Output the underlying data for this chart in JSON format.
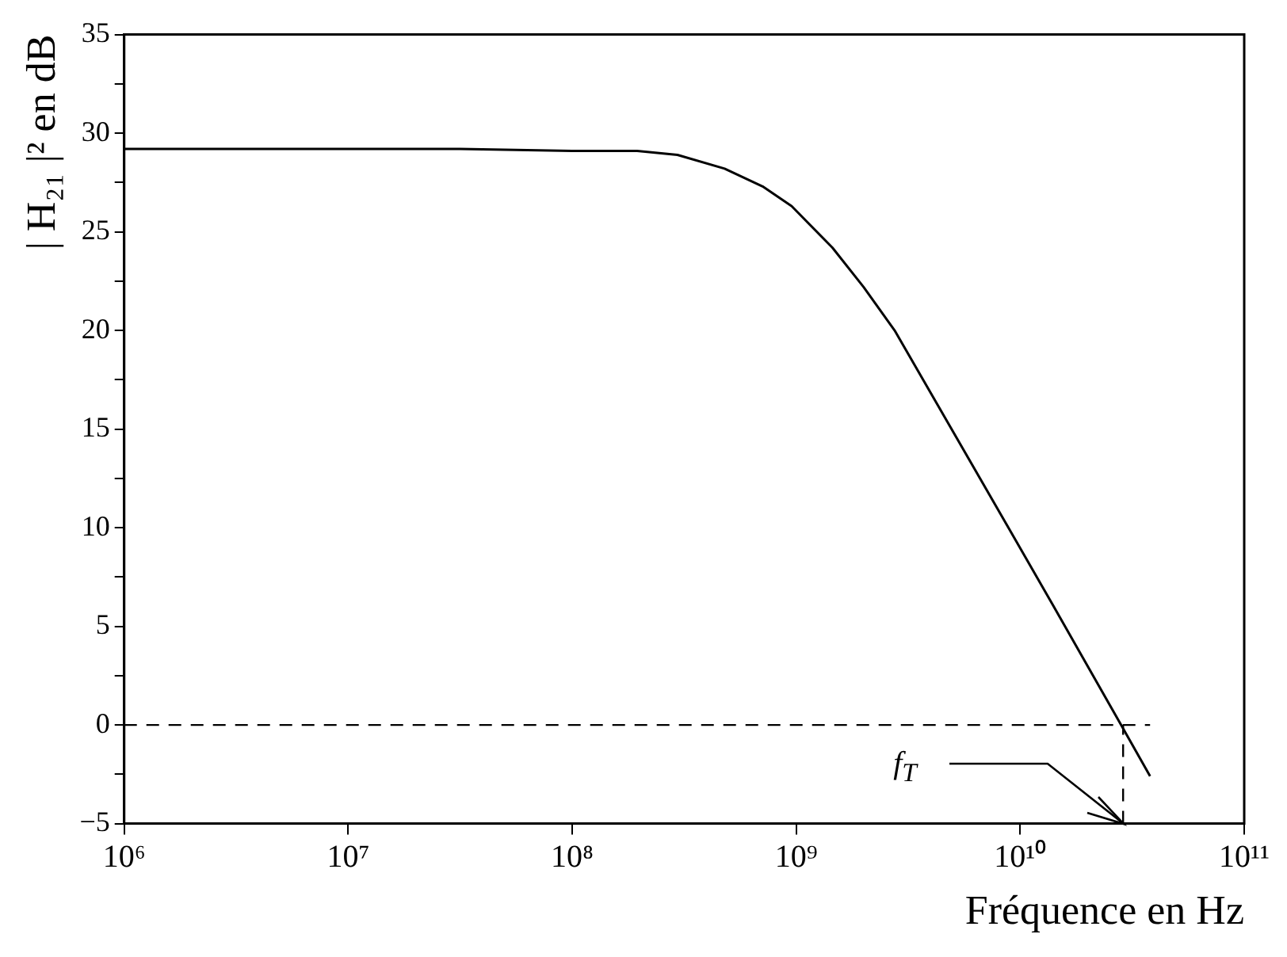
{
  "chart_data": {
    "type": "line",
    "xlabel": "Fréquence en Hz",
    "ylabel": "| H₂₁ |² en dB",
    "log": "x",
    "x": [
      1000000.0,
      10000000.0,
      31600000.0,
      100000000.0,
      195000000.0,
      295000000.0,
      479000000.0,
      708000000.0,
      955000000.0,
      1450000000.0,
      2000000000.0,
      2750000000.0,
      6170000000.0,
      13800000000.0,
      28200000000.0,
      38000000000.0
    ],
    "series": [
      {
        "color": "#000000",
        "values": [
          29.2,
          29.2,
          29.2,
          29.1,
          29.1,
          28.9,
          28.2,
          27.3,
          26.3,
          24.2,
          22.2,
          20.0,
          13.1,
          6.2,
          0,
          -2.6
        ]
      }
    ],
    "xlim": [
      1000000.0,
      100000000000.0
    ],
    "ylim": [
      -5,
      35
    ],
    "xticks": [
      {
        "value": 1000000.0,
        "label": "10⁶"
      },
      {
        "value": 10000000.0,
        "label": "10⁷"
      },
      {
        "value": 100000000.0,
        "label": "10⁸"
      },
      {
        "value": 1000000000.0,
        "label": "10⁹"
      },
      {
        "value": 10000000000.0,
        "label": "10¹⁰"
      },
      {
        "value": 100000000000.0,
        "label": "10¹¹"
      }
    ],
    "yticks": [
      {
        "value": -5,
        "label": "−5"
      },
      {
        "value": -2.5,
        "label": null
      },
      0,
      {
        "value": 2.5,
        "label": null
      },
      5,
      {
        "value": 7.5,
        "label": null
      },
      10,
      {
        "value": 12.5,
        "label": null
      },
      15,
      {
        "value": 17.5,
        "label": null
      },
      20,
      {
        "value": 22.5,
        "label": null
      },
      25,
      {
        "value": 27.5,
        "label": null
      },
      30,
      {
        "value": 32.5,
        "label": null
      },
      35
    ],
    "grid": false,
    "legend": false,
    "marker": "none",
    "line_style": "solid",
    "ref_lines": [
      {
        "axis": "y",
        "value": 0,
        "line_style": "dashed",
        "color": "#000000"
      },
      {
        "axis": "x",
        "value": 28800000000.0,
        "line_style": "dashed",
        "color": "#000000",
        "label": "f$_{T}$"
      }
    ]
  }
}
